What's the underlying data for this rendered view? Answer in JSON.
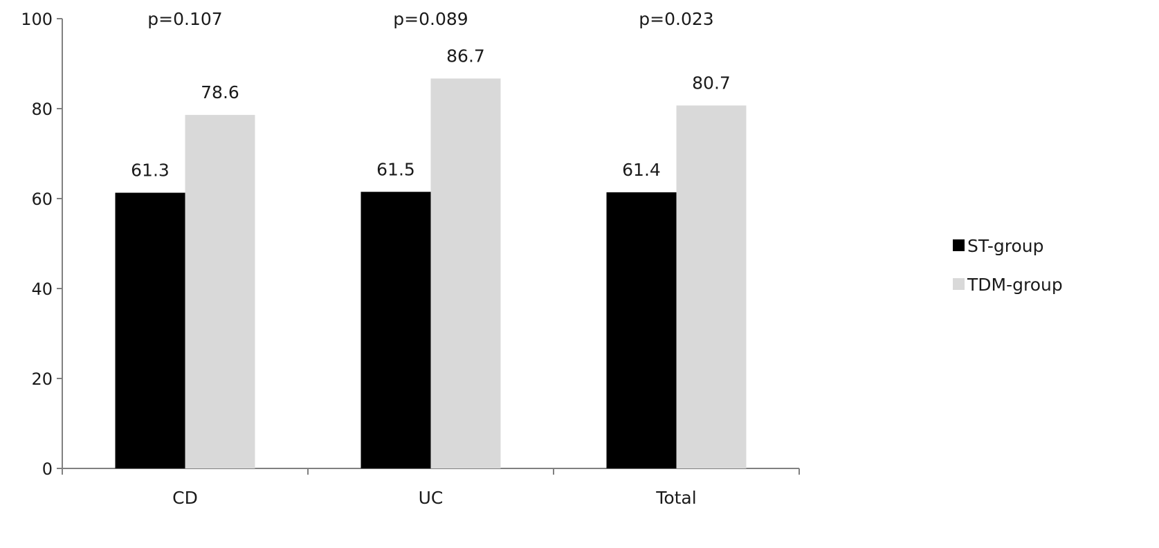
{
  "chart_data": {
    "type": "bar",
    "categories": [
      "CD",
      "UC",
      "Total"
    ],
    "series": [
      {
        "name": "ST-group",
        "values": [
          61.3,
          61.5,
          61.4
        ],
        "color": "#000000"
      },
      {
        "name": "TDM-group",
        "values": [
          78.6,
          86.7,
          80.7
        ],
        "color": "#d9d9d9"
      }
    ],
    "data_labels": [
      [
        "61.3",
        "61.5",
        "61.4"
      ],
      [
        "78.6",
        "86.7",
        "80.7"
      ]
    ],
    "annotations": [
      "p=0.107",
      "p=0.089",
      "p=0.023"
    ],
    "yticks": [
      "0",
      "20",
      "40",
      "60",
      "80",
      "100"
    ],
    "ylim": [
      0,
      100
    ],
    "title": "",
    "xlabel": "",
    "ylabel": "",
    "grid": false,
    "legend_position": "right"
  }
}
